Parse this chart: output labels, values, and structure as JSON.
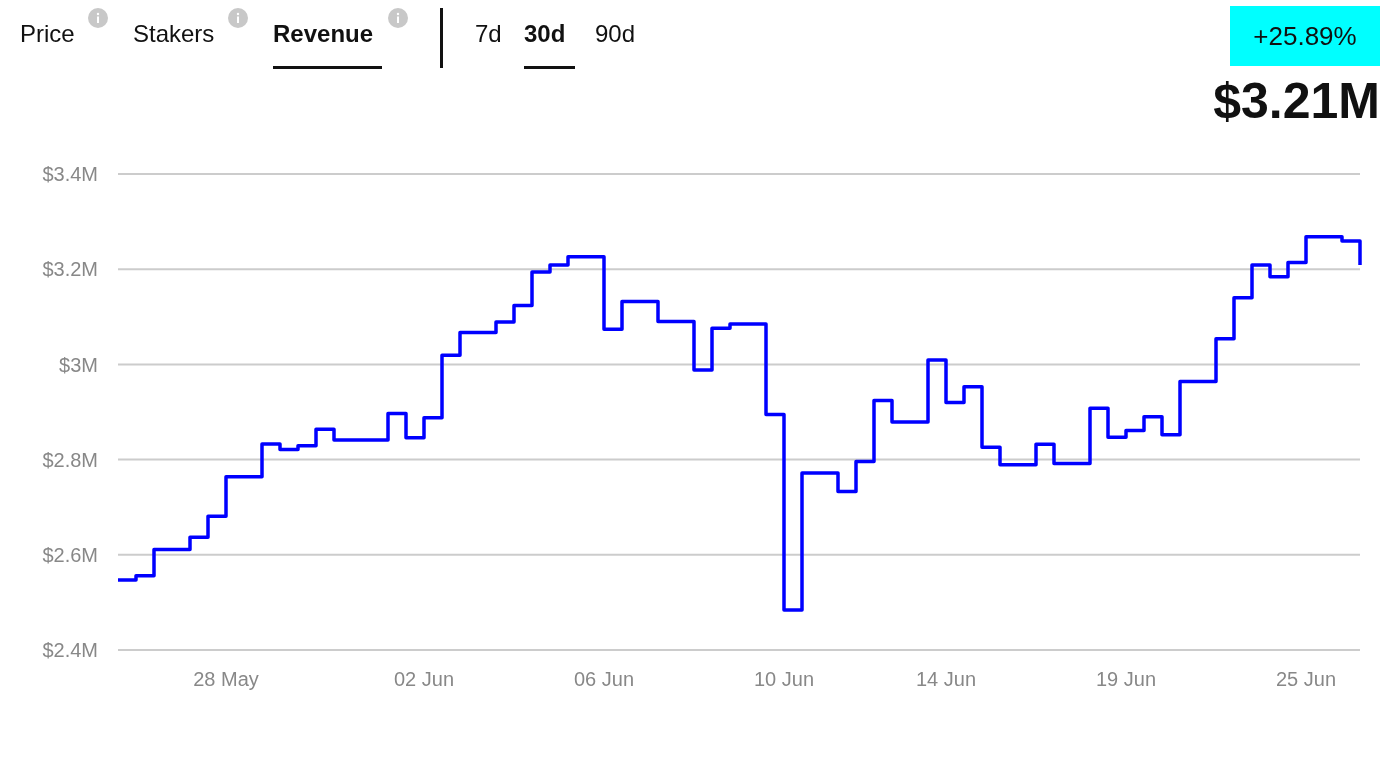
{
  "chart_data": {
    "type": "step",
    "categories": [
      null,
      null,
      null,
      null,
      null,
      null,
      "28 May",
      null,
      null,
      null,
      null,
      null,
      null,
      null,
      null,
      null,
      null,
      "02 Jun",
      null,
      null,
      null,
      null,
      null,
      null,
      null,
      null,
      null,
      "06 Jun",
      null,
      null,
      null,
      null,
      null,
      null,
      null,
      null,
      null,
      "10 Jun",
      null,
      null,
      null,
      null,
      null,
      null,
      null,
      null,
      "14 Jun",
      null,
      null,
      null,
      null,
      null,
      null,
      null,
      null,
      null,
      "19 Jun",
      null,
      null,
      null,
      null,
      null,
      null,
      null,
      null,
      null,
      "25 Jun",
      null,
      null,
      null
    ],
    "series": [
      {
        "color": "#0000ff",
        "values": [
          2.547,
          2.556,
          2.611,
          2.611,
          2.637,
          2.681,
          2.764,
          2.764,
          2.833,
          2.821,
          2.829,
          2.864,
          2.841,
          2.841,
          2.841,
          2.897,
          2.846,
          2.888,
          3.019,
          3.067,
          3.067,
          3.089,
          3.124,
          3.194,
          3.209,
          3.226,
          3.226,
          3.074,
          3.132,
          3.132,
          3.09,
          3.09,
          2.988,
          3.076,
          3.085,
          3.085,
          2.895,
          2.484,
          2.772,
          2.772,
          2.733,
          2.796,
          2.924,
          2.879,
          2.879,
          3.009,
          2.92,
          2.953,
          2.826,
          2.789,
          2.789,
          2.832,
          2.792,
          2.792,
          2.908,
          2.847,
          2.861,
          2.89,
          2.852,
          2.964,
          2.964,
          3.054,
          3.14,
          3.209,
          3.184,
          3.214,
          3.268,
          3.268,
          3.259,
          3.209
        ]
      }
    ],
    "ylim": [
      2.4,
      3.4
    ],
    "yticks": [
      {
        "value": 2.4,
        "label": "$2.4M"
      },
      {
        "value": 2.6,
        "label": "$2.6M"
      },
      {
        "value": 2.8,
        "label": "$2.8M"
      },
      {
        "value": 3.0,
        "label": "$3M"
      },
      {
        "value": 3.2,
        "label": "$3.2M"
      },
      {
        "value": 3.4,
        "label": "$3.4M"
      }
    ],
    "grid": "y",
    "marker": "none",
    "line_style": "solid",
    "annotations": [
      "Price",
      "Stakers",
      "Revenue",
      "7d",
      "30d",
      "90d",
      "+25.89%",
      "$3.21M"
    ]
  }
}
